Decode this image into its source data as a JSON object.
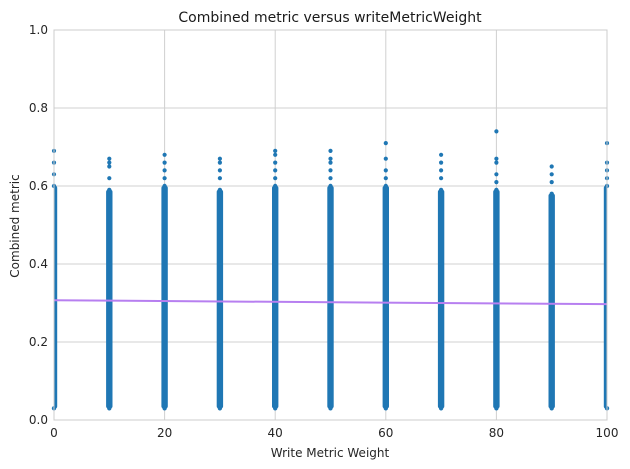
{
  "chart_data": {
    "type": "scatter",
    "title": "Combined metric versus writeMetricWeight",
    "xlabel": "Write Metric Weight",
    "ylabel": "Combined metric",
    "xlim": [
      0,
      100
    ],
    "ylim": [
      0,
      1.0
    ],
    "x_ticks": [
      0,
      20,
      40,
      60,
      80,
      100
    ],
    "y_ticks": [
      0.0,
      0.2,
      0.4,
      0.6,
      0.8,
      1.0
    ],
    "x_tick_labels": [
      "0",
      "20",
      "40",
      "60",
      "80",
      "100"
    ],
    "y_tick_labels": [
      "0.0",
      "0.2",
      "0.4",
      "0.6",
      "0.8",
      "1.0"
    ],
    "grid": true,
    "colors": {
      "points": "#1f77b4",
      "trend": "#b77ff0"
    },
    "series": [
      {
        "kind": "strip",
        "x": [
          0,
          10,
          20,
          30,
          40,
          50,
          60,
          70,
          80,
          90,
          100
        ],
        "dense_min": [
          0.03,
          0.03,
          0.03,
          0.03,
          0.03,
          0.03,
          0.03,
          0.03,
          0.03,
          0.03,
          0.03
        ],
        "dense_max": [
          0.6,
          0.59,
          0.6,
          0.59,
          0.6,
          0.6,
          0.6,
          0.59,
          0.59,
          0.58,
          0.6
        ],
        "outliers": [
          [
            0,
            0.66
          ],
          [
            0,
            0.69
          ],
          [
            0,
            0.63
          ],
          [
            10,
            0.62
          ],
          [
            10,
            0.65
          ],
          [
            10,
            0.67
          ],
          [
            10,
            0.66
          ],
          [
            20,
            0.62
          ],
          [
            20,
            0.64
          ],
          [
            20,
            0.66
          ],
          [
            20,
            0.68
          ],
          [
            30,
            0.62
          ],
          [
            30,
            0.64
          ],
          [
            30,
            0.66
          ],
          [
            30,
            0.67
          ],
          [
            40,
            0.62
          ],
          [
            40,
            0.64
          ],
          [
            40,
            0.66
          ],
          [
            40,
            0.69
          ],
          [
            40,
            0.68
          ],
          [
            50,
            0.62
          ],
          [
            50,
            0.64
          ],
          [
            50,
            0.66
          ],
          [
            50,
            0.69
          ],
          [
            50,
            0.67
          ],
          [
            60,
            0.62
          ],
          [
            60,
            0.64
          ],
          [
            60,
            0.67
          ],
          [
            60,
            0.71
          ],
          [
            70,
            0.62
          ],
          [
            70,
            0.64
          ],
          [
            70,
            0.66
          ],
          [
            70,
            0.68
          ],
          [
            80,
            0.61
          ],
          [
            80,
            0.63
          ],
          [
            80,
            0.66
          ],
          [
            80,
            0.67
          ],
          [
            80,
            0.74
          ],
          [
            90,
            0.61
          ],
          [
            90,
            0.63
          ],
          [
            90,
            0.65
          ],
          [
            100,
            0.62
          ],
          [
            100,
            0.64
          ],
          [
            100,
            0.66
          ],
          [
            100,
            0.71
          ]
        ]
      },
      {
        "kind": "line",
        "x": [
          0,
          100
        ],
        "y": [
          0.307,
          0.297
        ]
      }
    ]
  }
}
